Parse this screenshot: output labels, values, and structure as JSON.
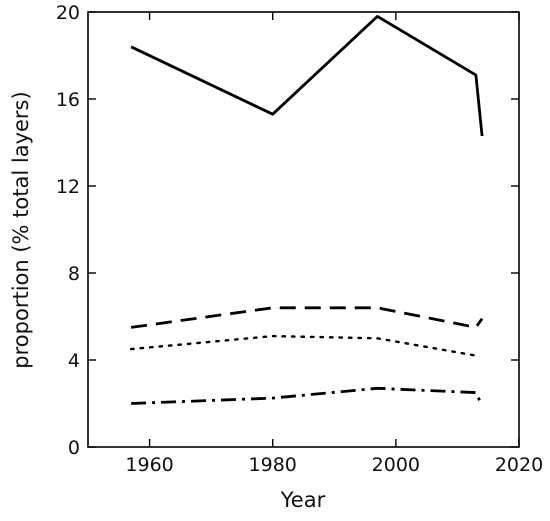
{
  "chart_data": {
    "type": "line",
    "title": "",
    "xlabel": "Year",
    "ylabel": "proportion (% total layers)",
    "xlim": [
      1950,
      2020
    ],
    "ylim": [
      0,
      20
    ],
    "xticks": [
      1960,
      1980,
      2000,
      2020
    ],
    "yticks": [
      0,
      4,
      8,
      12,
      16,
      20
    ],
    "grid": false,
    "legend": "none",
    "series": [
      {
        "style": "solid",
        "color": "#000000",
        "x": [
          1957,
          1980,
          1997,
          2013,
          2014
        ],
        "y": [
          18.4,
          15.3,
          19.8,
          17.1,
          14.3
        ]
      },
      {
        "style": "dashed",
        "color": "#000000",
        "x": [
          1957,
          1980,
          1997,
          2013,
          2014
        ],
        "y": [
          5.5,
          6.4,
          6.4,
          5.5,
          5.9
        ]
      },
      {
        "style": "dotted",
        "color": "#000000",
        "x": [
          1957,
          1980,
          1997,
          2013
        ],
        "y": [
          4.5,
          5.1,
          5.0,
          4.2
        ]
      },
      {
        "style": "dashdot",
        "color": "#000000",
        "x": [
          1957,
          1980,
          1997,
          2013,
          2014
        ],
        "y": [
          2.0,
          2.25,
          2.7,
          2.5,
          1.9
        ]
      }
    ]
  }
}
